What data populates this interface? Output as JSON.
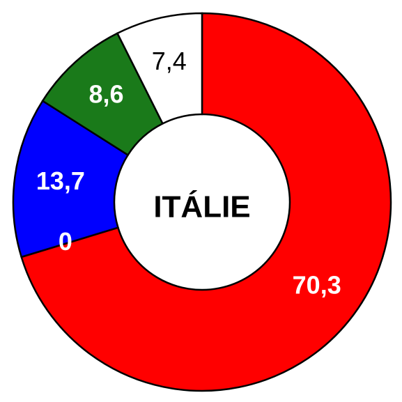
{
  "chart_data": {
    "type": "pie",
    "donut": true,
    "title": "ITÁLIE",
    "values": [
      70.3,
      0,
      13.7,
      8.6,
      7.4
    ],
    "value_labels": [
      "70,3",
      "0",
      "13,7",
      "8,6",
      "7,4"
    ],
    "colors": [
      "#ff0000",
      "#ff00ff",
      "#0000ff",
      "#1a7a1a",
      "#ffffff"
    ]
  }
}
